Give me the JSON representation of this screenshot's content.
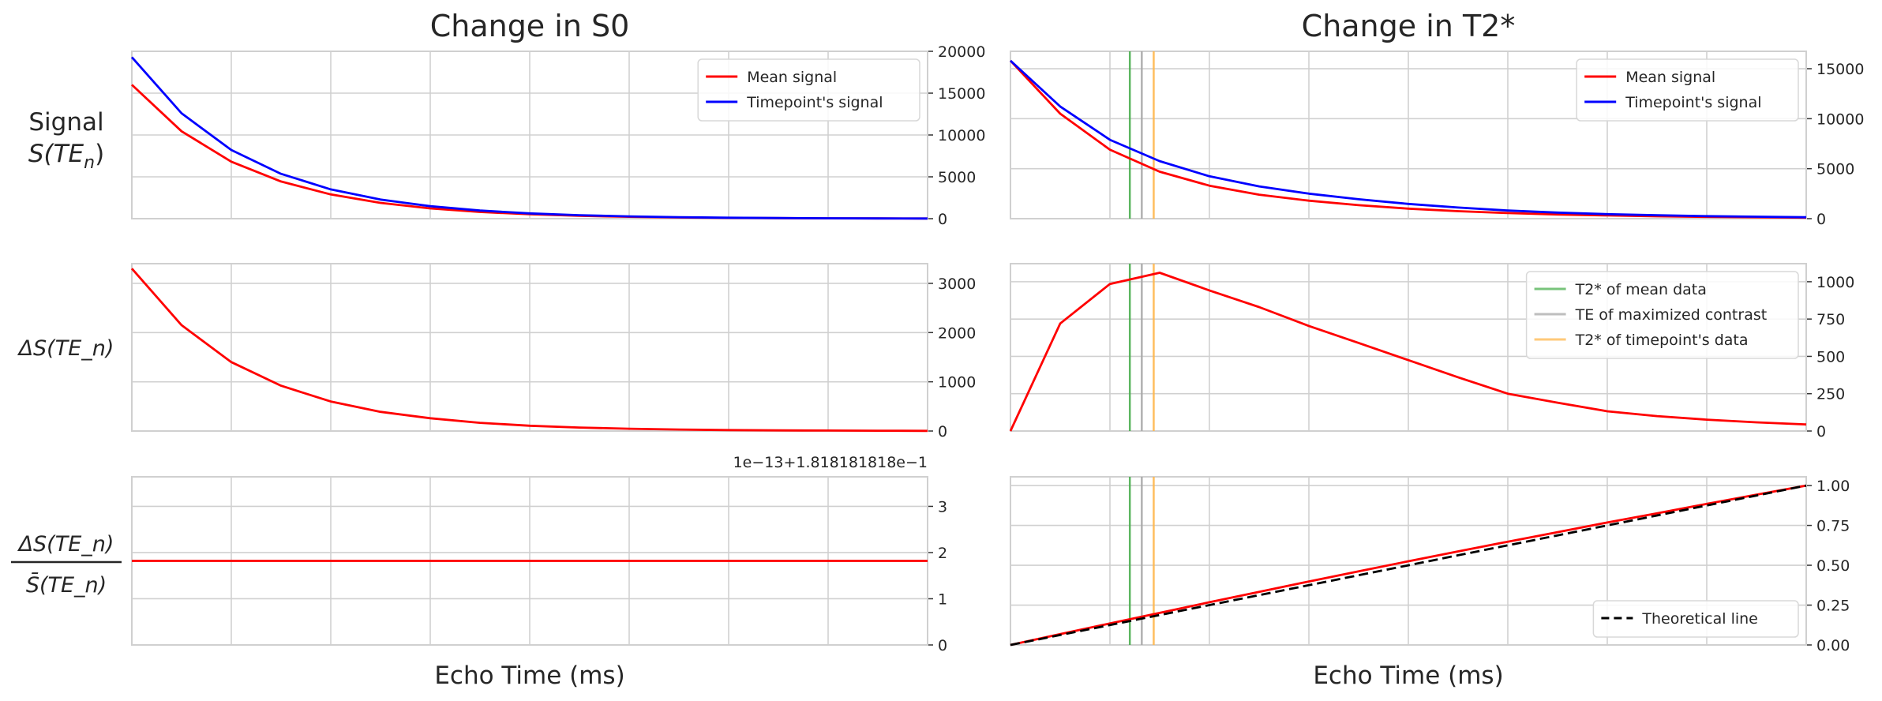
{
  "chart_data": [
    {
      "type": "line",
      "panel": "left-row1",
      "title": "Change in S0",
      "ylabel": "Signal S(TE_n)",
      "ylim": [
        0,
        20000
      ],
      "yticks": [
        0,
        5000,
        10000,
        15000,
        20000
      ],
      "y_axis_side": "right",
      "grid": true,
      "legend": "top-right",
      "x": [
        0,
        0.5,
        1,
        1.5,
        2,
        2.5,
        3,
        3.5,
        4,
        4.5,
        5,
        5.5,
        6,
        6.5,
        7,
        7.5,
        8
      ],
      "series": [
        {
          "name": "Mean signal",
          "color": "#ff0000",
          "values": [
            16000,
            10440,
            6810,
            4440,
            2900,
            1890,
            1230,
            803,
            524,
            342,
            223,
            145,
            95,
            62,
            40,
            26,
            17
          ]
        },
        {
          "name": "Timepoint's signal",
          "color": "#0000ff",
          "values": [
            19300,
            12590,
            8210,
            5360,
            3500,
            2280,
            1490,
            970,
            632,
            412,
            269,
            175,
            115,
            75,
            49,
            32,
            21
          ]
        }
      ]
    },
    {
      "type": "line",
      "panel": "left-row2",
      "ylabel": "ΔS(TE_n)",
      "ylim": [
        0,
        3400
      ],
      "yticks": [
        0,
        1000,
        2000,
        3000
      ],
      "y_axis_side": "right",
      "grid": true,
      "x": [
        0,
        0.5,
        1,
        1.5,
        2,
        2.5,
        3,
        3.5,
        4,
        4.5,
        5,
        5.5,
        6,
        6.5,
        7,
        7.5,
        8
      ],
      "series": [
        {
          "color": "#ff0000",
          "values": [
            3300,
            2150,
            1400,
            920,
            600,
            390,
            260,
            167,
            108,
            70,
            46,
            30,
            20,
            13,
            9,
            6,
            4
          ]
        }
      ]
    },
    {
      "type": "line",
      "panel": "left-row3",
      "ylabel_num": "ΔS(TE_n)",
      "ylabel_den": "S̄(TE_n)",
      "ylim": [
        0,
        3.64
      ],
      "yticks": [
        0,
        1,
        2,
        3
      ],
      "offset_label": "1e−13+1.818181818e−1",
      "y_axis_side": "right",
      "grid": true,
      "xlabel": "Echo Time (ms)",
      "x": [
        0,
        0.5,
        1,
        1.5,
        2,
        2.5,
        3,
        3.5,
        4,
        4.5,
        5,
        5.5,
        6,
        6.5,
        7,
        7.5,
        8
      ],
      "series": [
        {
          "color": "#ff0000",
          "values": [
            1.82,
            1.82,
            1.82,
            1.82,
            1.82,
            1.82,
            1.82,
            1.82,
            1.82,
            1.82,
            1.82,
            1.82,
            1.82,
            1.82,
            1.82,
            1.82,
            1.82
          ]
        }
      ]
    },
    {
      "type": "line",
      "panel": "right-row1",
      "title": "Change in T2*",
      "ylim": [
        0,
        16740
      ],
      "yticks": [
        0,
        5000,
        10000,
        15000
      ],
      "y_axis_side": "right",
      "grid": true,
      "legend": "top-right",
      "x": [
        0,
        0.5,
        1,
        1.5,
        2,
        2.5,
        3,
        3.5,
        4,
        4.5,
        5,
        5.5,
        6,
        6.5,
        7,
        7.5,
        8
      ],
      "series": [
        {
          "name": "Mean signal",
          "color": "#ff0000",
          "values": [
            15800,
            10500,
            6900,
            4700,
            3300,
            2400,
            1800,
            1350,
            1000,
            750,
            560,
            420,
            320,
            240,
            180,
            140,
            100
          ]
        },
        {
          "name": "Timepoint's signal",
          "color": "#0000ff",
          "values": [
            15800,
            11220,
            7885,
            5760,
            4242,
            3230,
            2504,
            1940,
            1475,
            1110,
            810,
            610,
            452,
            340,
            256,
            198,
            144
          ]
        }
      ],
      "vlines": [
        {
          "x": 1.2,
          "color": "#4caf50"
        },
        {
          "x": 1.32,
          "color": "#a9a9a9"
        },
        {
          "x": 1.44,
          "color": "#ffb74d"
        }
      ]
    },
    {
      "type": "line",
      "panel": "right-row2",
      "ylim": [
        0,
        1121
      ],
      "yticks": [
        0,
        250,
        500,
        750,
        1000
      ],
      "y_axis_side": "right",
      "grid": true,
      "legend": "top-right",
      "x": [
        0,
        0.5,
        1,
        1.5,
        2,
        2.5,
        3,
        3.5,
        4,
        4.5,
        5,
        5.5,
        6,
        6.5,
        7,
        7.5,
        8
      ],
      "series": [
        {
          "color": "#ff0000",
          "values": [
            0,
            720,
            985,
            1060,
            942,
            830,
            704,
            590,
            475,
            360,
            250,
            190,
            132,
            100,
            76,
            58,
            44
          ]
        }
      ],
      "vlines": [
        {
          "name": "T2* of mean data",
          "x": 1.2,
          "color": "#4caf50"
        },
        {
          "name": "TE of maximized contrast",
          "x": 1.32,
          "color": "#a9a9a9"
        },
        {
          "name": "T2* of timepoint's data",
          "x": 1.44,
          "color": "#ffb74d"
        }
      ]
    },
    {
      "type": "line",
      "panel": "right-row3",
      "ylim": [
        0,
        1.055
      ],
      "yticks": [
        0,
        0.25,
        0.5,
        0.75,
        1.0
      ],
      "ytick_labels": [
        "0.00",
        "0.25",
        "0.50",
        "0.75",
        "1.00"
      ],
      "y_axis_side": "right",
      "grid": true,
      "legend": "bottom-right",
      "xlabel": "Echo Time (ms)",
      "x": [
        0,
        0.5,
        1,
        1.5,
        2,
        2.5,
        3,
        3.5,
        4,
        4.5,
        5,
        5.5,
        6,
        6.5,
        7,
        7.5,
        8
      ],
      "series": [
        {
          "color": "#ff0000",
          "values": [
            0,
            0.068,
            0.135,
            0.201,
            0.268,
            0.333,
            0.398,
            0.462,
            0.525,
            0.587,
            0.648,
            0.708,
            0.768,
            0.826,
            0.885,
            0.943,
            1.0
          ]
        },
        {
          "name": "Theoretical line",
          "color": "#000000",
          "dashed": true,
          "values": [
            0,
            0.0625,
            0.125,
            0.1875,
            0.25,
            0.3125,
            0.375,
            0.4375,
            0.5,
            0.5625,
            0.625,
            0.6875,
            0.75,
            0.8125,
            0.875,
            0.9375,
            1.0
          ]
        }
      ],
      "vlines": [
        {
          "x": 1.2,
          "color": "#4caf50"
        },
        {
          "x": 1.32,
          "color": "#a9a9a9"
        },
        {
          "x": 1.44,
          "color": "#ffb74d"
        }
      ]
    }
  ]
}
